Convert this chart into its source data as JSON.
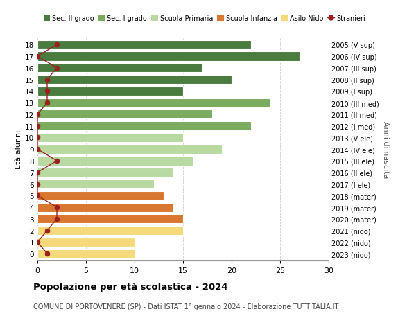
{
  "ages": [
    18,
    17,
    16,
    15,
    14,
    13,
    12,
    11,
    10,
    9,
    8,
    7,
    6,
    5,
    4,
    3,
    2,
    1,
    0
  ],
  "bar_values": [
    22,
    27,
    17,
    20,
    15,
    24,
    18,
    22,
    15,
    19,
    16,
    14,
    12,
    13,
    14,
    15,
    15,
    10,
    10
  ],
  "stranieri": [
    2,
    0,
    2,
    1,
    1,
    1,
    0,
    0,
    0,
    0,
    2,
    0,
    0,
    0,
    2,
    2,
    1,
    0,
    1
  ],
  "right_labels": [
    "2005 (V sup)",
    "2006 (IV sup)",
    "2007 (III sup)",
    "2008 (II sup)",
    "2009 (I sup)",
    "2010 (III med)",
    "2011 (II med)",
    "2012 (I med)",
    "2013 (V ele)",
    "2014 (IV ele)",
    "2015 (III ele)",
    "2016 (II ele)",
    "2017 (I ele)",
    "2018 (mater)",
    "2019 (mater)",
    "2020 (mater)",
    "2021 (nido)",
    "2022 (nido)",
    "2023 (nido)"
  ],
  "bar_colors": [
    "#4a7c3f",
    "#4a7c3f",
    "#4a7c3f",
    "#4a7c3f",
    "#4a7c3f",
    "#7aab5e",
    "#7aab5e",
    "#7aab5e",
    "#b8d9a0",
    "#b8d9a0",
    "#b8d9a0",
    "#b8d9a0",
    "#b8d9a0",
    "#d97730",
    "#d97730",
    "#d97730",
    "#f5d97a",
    "#f5d97a",
    "#f5d97a"
  ],
  "stranieri_color": "#9b2020",
  "title": "Popolazione per età scolastica - 2024",
  "subtitle": "COMUNE DI PORTOVENERE (SP) - Dati ISTAT 1° gennaio 2024 - Elaborazione TUTTITALIA.IT",
  "ylabel": "Età alunni",
  "right_ylabel": "Anni di nascita",
  "xlim": [
    0,
    30
  ],
  "xticks": [
    0,
    5,
    10,
    15,
    20,
    25,
    30
  ],
  "bg_color": "#ffffff",
  "grid_color": "#cccccc",
  "legend_items": [
    {
      "label": "Sec. II grado",
      "color": "#4a7c3f",
      "type": "patch"
    },
    {
      "label": "Sec. I grado",
      "color": "#7aab5e",
      "type": "patch"
    },
    {
      "label": "Scuola Primaria",
      "color": "#b8d9a0",
      "type": "patch"
    },
    {
      "label": "Scuola Infanzia",
      "color": "#d97730",
      "type": "patch"
    },
    {
      "label": "Asilo Nido",
      "color": "#f5d97a",
      "type": "patch"
    },
    {
      "label": "Stranieri",
      "color": "#9b2020",
      "type": "line"
    }
  ]
}
